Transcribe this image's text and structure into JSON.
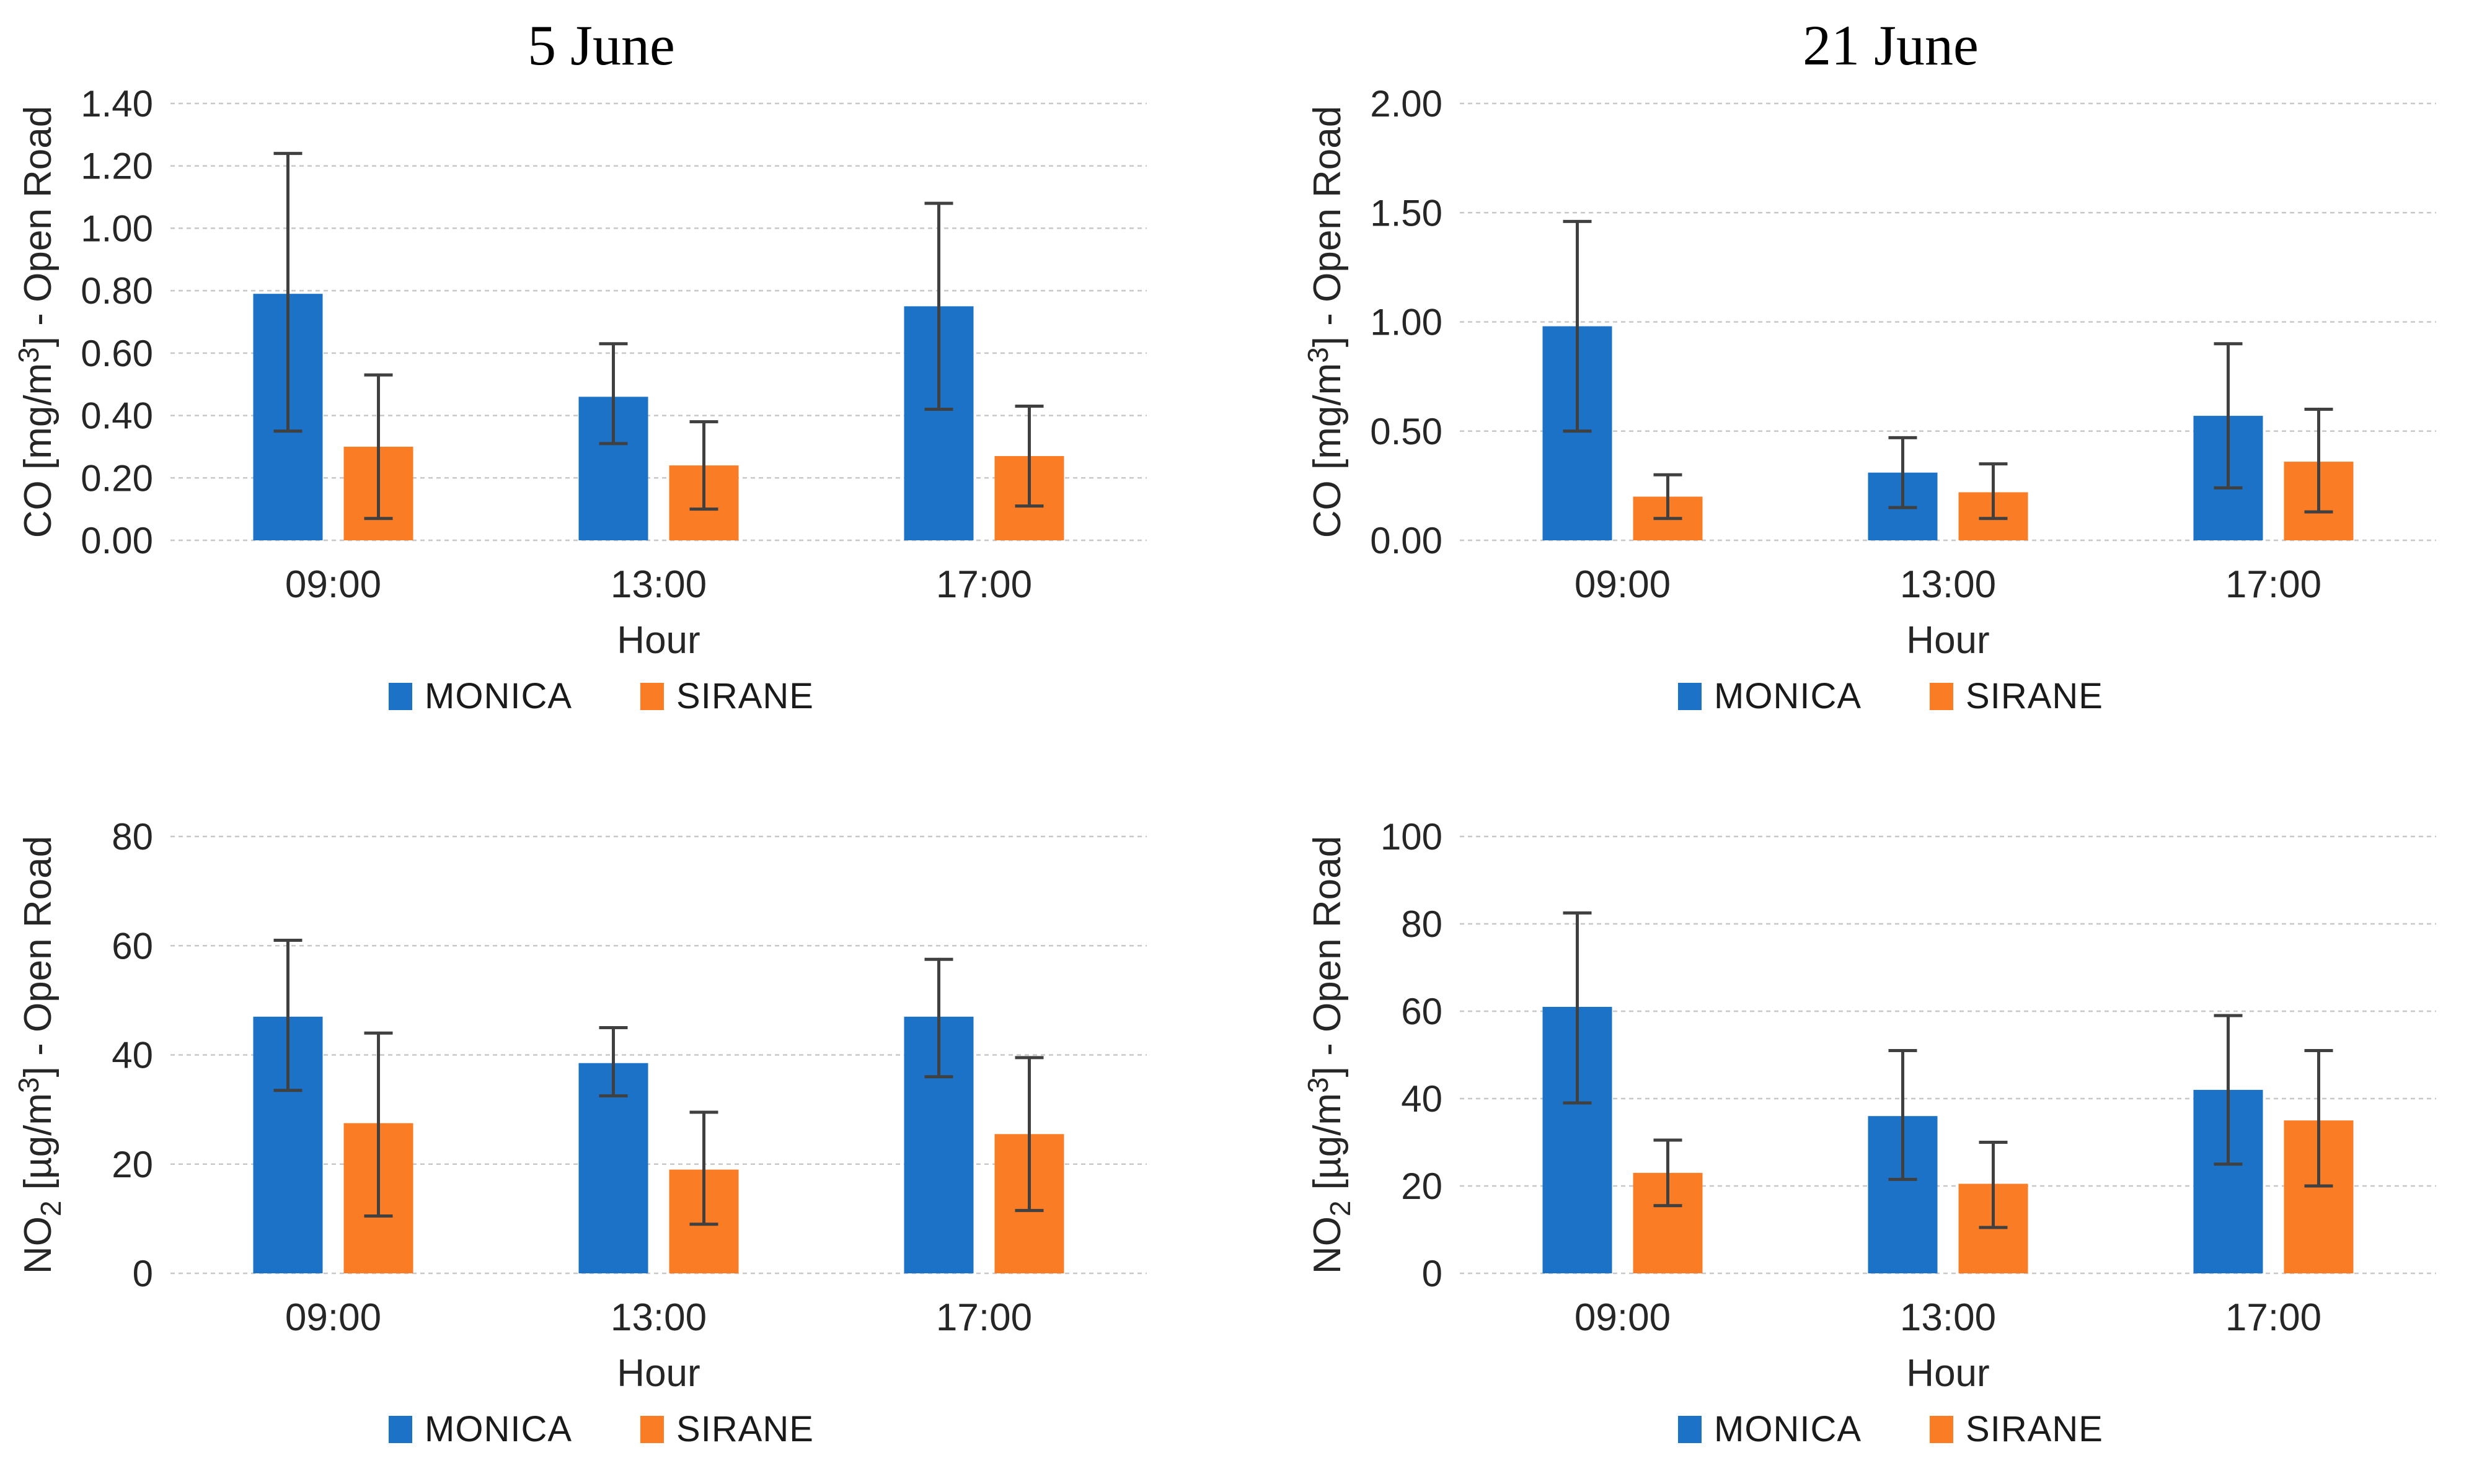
{
  "page": {
    "background": "#FFFFFF",
    "description_colors": {
      "monica_blue": "#1B72C6",
      "sirane_orange": "#FA7D26",
      "error_bar": "#404040",
      "gridline": "#C8C8C8",
      "axis_text": "#262626",
      "title_text": "#000000"
    }
  },
  "legend": {
    "items": [
      {
        "label": "MONICA",
        "color": "#1B72C6"
      },
      {
        "label": "SIRANE",
        "color": "#FA7D26"
      }
    ]
  },
  "chart_data": [
    {
      "type": "bar",
      "position": "top-left",
      "title": "5 June",
      "xlabel": "Hour",
      "ylabel_text": "CO [mg/m3] - Open Road",
      "ylabel_parts": [
        {
          "t": "CO [mg/m"
        },
        {
          "t": "3",
          "style": "sup"
        },
        {
          "t": "] - Open Road"
        }
      ],
      "ylim": [
        0,
        1.4
      ],
      "ystep": 0.2,
      "tick_decimals": 2,
      "grid": "horizontal-dashed",
      "legend_position": "bottom",
      "categories": [
        "09:00",
        "13:00",
        "17:00"
      ],
      "series": [
        {
          "name": "MONICA",
          "color": "#1B72C6",
          "values": [
            0.79,
            0.46,
            0.75
          ],
          "error_low": [
            0.35,
            0.31,
            0.42
          ],
          "error_high": [
            1.24,
            0.63,
            1.08
          ]
        },
        {
          "name": "SIRANE",
          "color": "#FA7D26",
          "values": [
            0.3,
            0.24,
            0.27
          ],
          "error_low": [
            0.07,
            0.1,
            0.11
          ],
          "error_high": [
            0.53,
            0.38,
            0.43
          ]
        }
      ]
    },
    {
      "type": "bar",
      "position": "top-right",
      "title": "21 June",
      "xlabel": "Hour",
      "ylabel_text": "CO [mg/m3] - Open Road",
      "ylabel_parts": [
        {
          "t": "CO [mg/m"
        },
        {
          "t": "3",
          "style": "sup"
        },
        {
          "t": "] - Open Road"
        }
      ],
      "ylim": [
        0,
        2.0
      ],
      "ystep": 0.5,
      "tick_decimals": 2,
      "grid": "horizontal-dashed",
      "legend_position": "bottom",
      "categories": [
        "09:00",
        "13:00",
        "17:00"
      ],
      "series": [
        {
          "name": "MONICA",
          "color": "#1B72C6",
          "values": [
            0.98,
            0.31,
            0.57
          ],
          "error_low": [
            0.5,
            0.15,
            0.24
          ],
          "error_high": [
            1.46,
            0.47,
            0.9
          ]
        },
        {
          "name": "SIRANE",
          "color": "#FA7D26",
          "values": [
            0.2,
            0.22,
            0.36
          ],
          "error_low": [
            0.1,
            0.1,
            0.13
          ],
          "error_high": [
            0.3,
            0.35,
            0.6
          ]
        }
      ]
    },
    {
      "type": "bar",
      "position": "bottom-left",
      "title": "",
      "xlabel": "Hour",
      "ylabel_text": "NO2 [ug/m3] - Open Road",
      "ylabel_parts": [
        {
          "t": "NO"
        },
        {
          "t": "2",
          "style": "sub"
        },
        {
          "t": " [µg/m"
        },
        {
          "t": "3",
          "style": "sup"
        },
        {
          "t": "] - Open Road"
        }
      ],
      "ylim": [
        0,
        80
      ],
      "ystep": 20,
      "tick_decimals": 0,
      "grid": "horizontal-dashed",
      "legend_position": "bottom",
      "categories": [
        "09:00",
        "13:00",
        "17:00"
      ],
      "series": [
        {
          "name": "MONICA",
          "color": "#1B72C6",
          "values": [
            47,
            38.5,
            47
          ],
          "error_low": [
            33.5,
            32.5,
            36
          ],
          "error_high": [
            61,
            45,
            57.5
          ]
        },
        {
          "name": "SIRANE",
          "color": "#FA7D26",
          "values": [
            27.5,
            19,
            25.5
          ],
          "error_low": [
            10.5,
            9,
            11.5
          ],
          "error_high": [
            44,
            29.5,
            39.5
          ]
        }
      ]
    },
    {
      "type": "bar",
      "position": "bottom-right",
      "title": "",
      "xlabel": "Hour",
      "ylabel_text": "NO2 [ug/m3] - Open Road",
      "ylabel_parts": [
        {
          "t": "NO"
        },
        {
          "t": "2",
          "style": "sub"
        },
        {
          "t": " [µg/m"
        },
        {
          "t": "3",
          "style": "sup"
        },
        {
          "t": "] - Open Road"
        }
      ],
      "ylim": [
        0,
        100
      ],
      "ystep": 20,
      "tick_decimals": 0,
      "grid": "horizontal-dashed",
      "legend_position": "bottom",
      "categories": [
        "09:00",
        "13:00",
        "17:00"
      ],
      "series": [
        {
          "name": "MONICA",
          "color": "#1B72C6",
          "values": [
            61,
            36,
            42
          ],
          "error_low": [
            39,
            21.5,
            25
          ],
          "error_high": [
            82.5,
            51,
            59
          ]
        },
        {
          "name": "SIRANE",
          "color": "#FA7D26",
          "values": [
            23,
            20.5,
            35
          ],
          "error_low": [
            15.5,
            10.5,
            20
          ],
          "error_high": [
            30.5,
            30,
            51
          ]
        }
      ]
    }
  ]
}
